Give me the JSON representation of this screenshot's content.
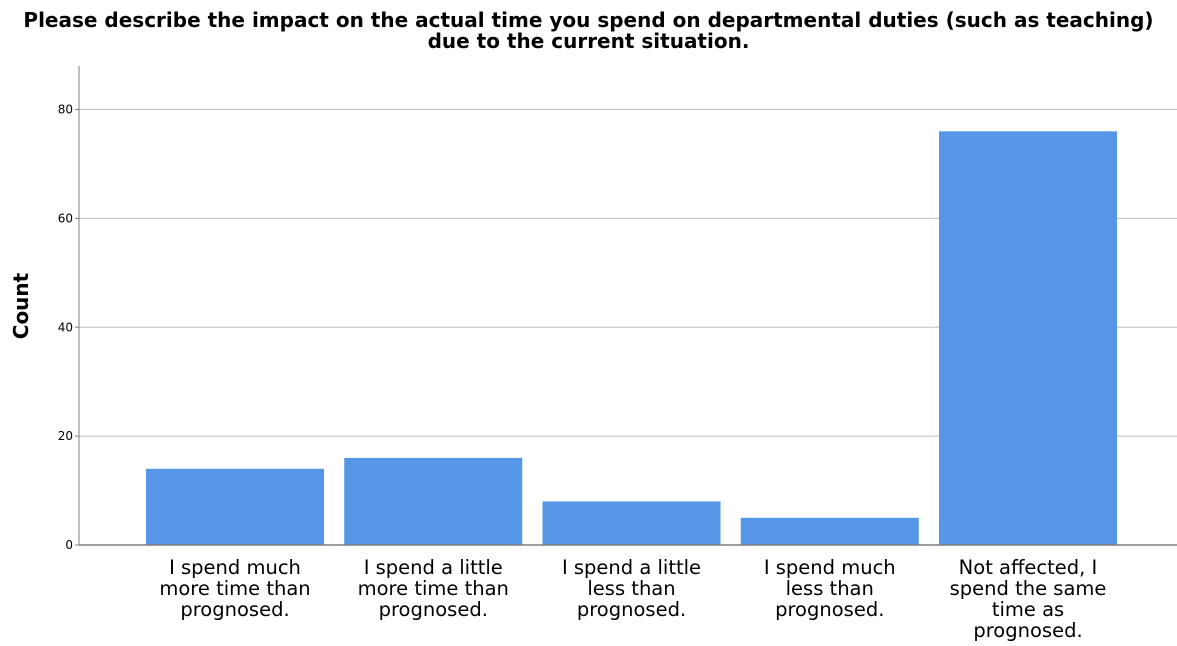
{
  "chart_data": {
    "type": "bar",
    "title_lines": [
      "Please describe the impact on the actual time you spend on departmental duties (such as teaching)",
      "due to the current situation."
    ],
    "xlabel": "",
    "ylabel": "Count",
    "categories": [
      [
        "I spend much",
        "more time than",
        "prognosed."
      ],
      [
        "I spend a little",
        "more time than",
        "prognosed."
      ],
      [
        "I spend a little",
        "less than",
        "prognosed."
      ],
      [
        "I spend much",
        "less than",
        "prognosed."
      ],
      [
        "Not affected, I",
        "spend the same",
        "time as",
        "prognosed."
      ]
    ],
    "values": [
      14,
      16,
      8,
      5,
      76
    ],
    "ylim": [
      0,
      88
    ],
    "yticks": [
      0,
      20,
      40,
      60,
      80
    ],
    "grid": true,
    "legend": "none",
    "colors": {
      "bar": "#5596e6",
      "grid": "#bdbdbd",
      "axis": "#7f7f7f"
    }
  }
}
